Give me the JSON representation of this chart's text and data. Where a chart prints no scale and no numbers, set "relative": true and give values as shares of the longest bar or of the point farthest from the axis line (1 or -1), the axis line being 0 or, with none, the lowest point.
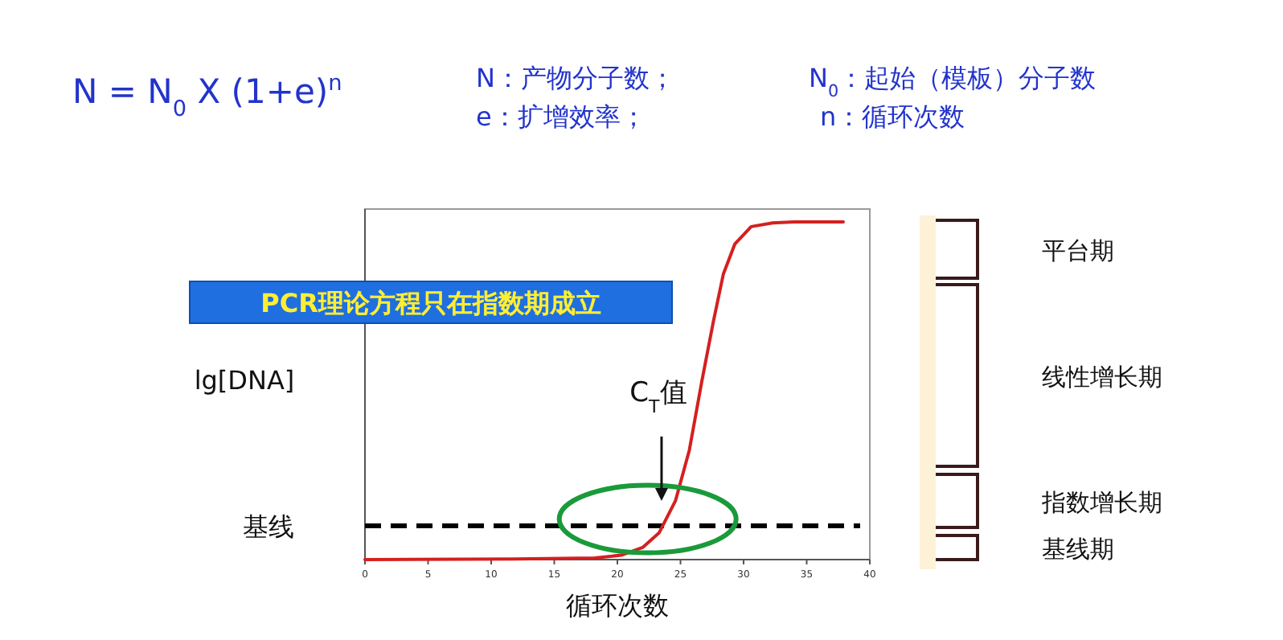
{
  "chart_data": {
    "type": "line",
    "relative": true,
    "xlabel": "循环次数",
    "ylabel": "lg[DNA]",
    "xlim": [
      0,
      40
    ],
    "xticks": [
      0,
      5,
      10,
      15,
      20,
      25,
      30,
      35,
      40
    ],
    "series": [
      {
        "color": "#d42020",
        "x": [
          0,
          11.8,
          18.2,
          20.3,
          22.0,
          23.3,
          24.6,
          25.7,
          26.7,
          27.6,
          28.4,
          29.3,
          30.6,
          32.3,
          34.0,
          37.9
        ],
        "values": [
          0,
          0.002,
          0.005,
          0.013,
          0.036,
          0.079,
          0.174,
          0.324,
          0.53,
          0.704,
          0.846,
          0.934,
          0.986,
          0.997,
          1,
          1
        ]
      }
    ],
    "ref_lines": [
      {
        "axis": "y",
        "value": 0.1,
        "label": "基线",
        "color": "#000000",
        "line_style": "dashed"
      }
    ],
    "annotations": [
      "N = N$_{0}$ X (1+e)$^{n}$",
      "N：产物分子数；",
      "e：扩增效率；",
      "N$_{0}$：起始（模板）分子数",
      "n：循环次数",
      "PCR理论方程只在指数期成立",
      "平台期",
      "线性增长期",
      "指数增长期",
      "基线期",
      "C$_{T}$值"
    ]
  }
}
